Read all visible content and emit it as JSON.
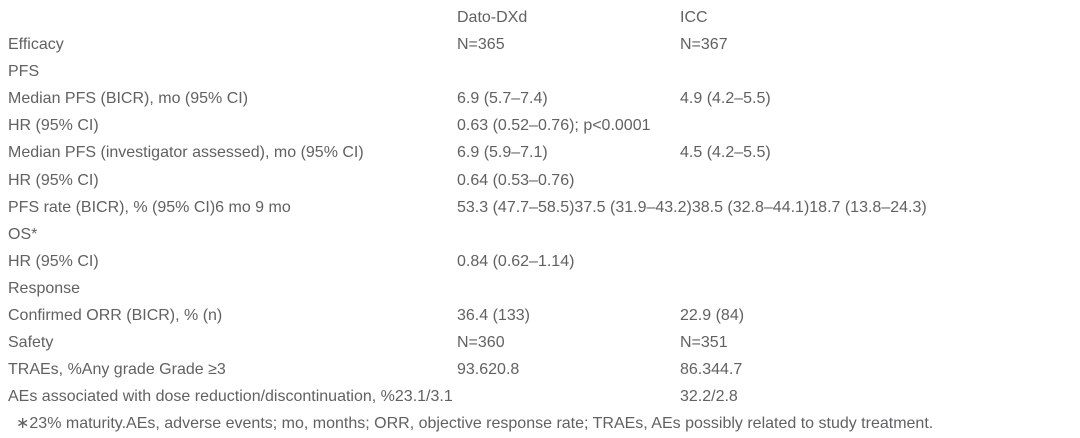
{
  "page": {
    "background_color": "#ffffff",
    "text_color": "#616163"
  },
  "table": {
    "header": {
      "label": "",
      "dato": "Dato-DXd",
      "icc": "ICC"
    },
    "rows": [
      {
        "label": "Efficacy",
        "dato": "N=365",
        "icc": "N=367"
      },
      {
        "label": "PFS",
        "dato": "",
        "icc": ""
      },
      {
        "label": "Median PFS (BICR), mo (95% CI)",
        "dato": "6.9 (5.7–7.4)",
        "icc": "4.9 (4.2–5.5)"
      },
      {
        "label": "HR (95% CI)",
        "dato": "0.63 (0.52–0.76); p<0.0001",
        "icc": ""
      },
      {
        "label": "Median PFS (investigator assessed), mo (95% CI)",
        "dato": "6.9 (5.9–7.1)",
        "icc": "4.5 (4.2–5.5)"
      },
      {
        "label": "HR (95% CI)",
        "dato": "0.64 (0.53–0.76)",
        "icc": ""
      },
      {
        "label": "PFS rate (BICR), % (95% CI)6 mo 9 mo",
        "dato": "53.3 (47.7–58.5)37.5 (31.9–43.2)38.5 (32.8–44.1)18.7 (13.8–24.3)",
        "icc": ""
      },
      {
        "label": "OS*",
        "dato": "",
        "icc": ""
      },
      {
        "label": "HR (95% CI)",
        "dato": "0.84 (0.62–1.14)",
        "icc": ""
      },
      {
        "label": "Response",
        "dato": "",
        "icc": ""
      },
      {
        "label": "Confirmed ORR (BICR), % (n)",
        "dato": "36.4 (133)",
        "icc": "22.9 (84)"
      },
      {
        "label": "Safety",
        "dato": "N=360",
        "icc": "N=351"
      },
      {
        "label": "TRAEs, %Any grade Grade ≥3",
        "dato": "93.620.8",
        "icc": "86.344.7"
      },
      {
        "label": "AEs associated with dose reduction/discontinuation, %23.1/3.1",
        "dato": "",
        "icc": "32.2/2.8"
      }
    ]
  },
  "footnote": "∗23% maturity.AEs, adverse events; mo, months; ORR, objective response rate; TRAEs, AEs possibly related to study treatment."
}
